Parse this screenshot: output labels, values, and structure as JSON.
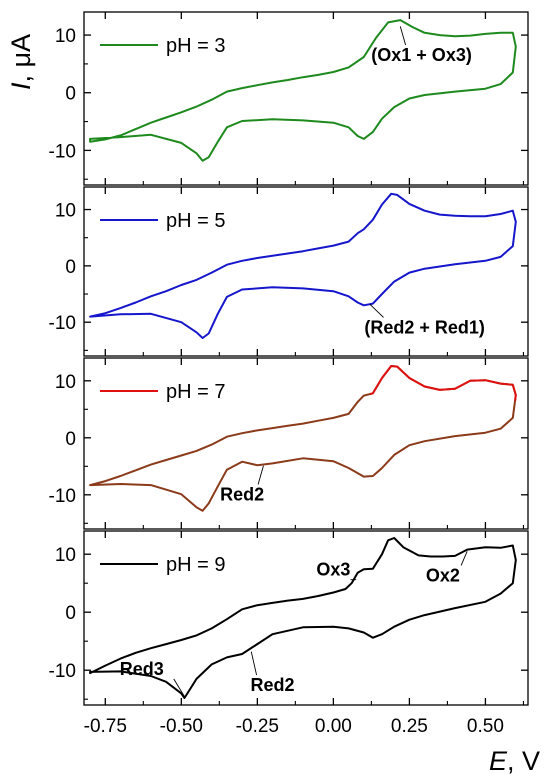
{
  "chart_data": {
    "type": "line",
    "xlabel_var": "E",
    "xlabel_unit": ", V",
    "ylabel_var": "I",
    "ylabel_unit": ", μA",
    "xlim": [
      -0.82,
      0.64
    ],
    "x_ticks": [
      -0.75,
      -0.5,
      -0.25,
      0.0,
      0.25,
      0.5
    ],
    "x_tick_labels": [
      "-0.75",
      "-0.50",
      "-0.25",
      "0.00",
      "0.25",
      "0.50"
    ],
    "panels": [
      {
        "name": "pH = 3",
        "colors": [
          "#1e8a1e"
        ],
        "ylim": [
          -16,
          14
        ],
        "y_ticks": [
          10,
          0,
          -10
        ],
        "y_tick_labels": [
          "10",
          "0",
          "-10"
        ],
        "points": [
          [
            -0.8,
            -8.5
          ],
          [
            -0.75,
            -8.1
          ],
          [
            -0.7,
            -7.4
          ],
          [
            -0.65,
            -6.3
          ],
          [
            -0.6,
            -5.2
          ],
          [
            -0.55,
            -4.3
          ],
          [
            -0.5,
            -3.4
          ],
          [
            -0.45,
            -2.4
          ],
          [
            -0.4,
            -1.2
          ],
          [
            -0.35,
            0.2
          ],
          [
            -0.3,
            0.8
          ],
          [
            -0.25,
            1.3
          ],
          [
            -0.2,
            1.8
          ],
          [
            -0.15,
            2.2
          ],
          [
            -0.1,
            2.7
          ],
          [
            -0.05,
            3.1
          ],
          [
            0,
            3.6
          ],
          [
            0.05,
            4.4
          ],
          [
            0.1,
            6.2
          ],
          [
            0.14,
            9.5
          ],
          [
            0.18,
            12.2
          ],
          [
            0.22,
            12.6
          ],
          [
            0.26,
            11.4
          ],
          [
            0.3,
            10.4
          ],
          [
            0.35,
            10
          ],
          [
            0.4,
            9.8
          ],
          [
            0.45,
            9.9
          ],
          [
            0.5,
            10.2
          ],
          [
            0.55,
            10.4
          ],
          [
            0.59,
            10.4
          ],
          [
            0.6,
            8
          ],
          [
            0.59,
            3.5
          ],
          [
            0.55,
            1.5
          ],
          [
            0.5,
            0.7
          ],
          [
            0.4,
            0.2
          ],
          [
            0.3,
            -0.4
          ],
          [
            0.25,
            -1
          ],
          [
            0.2,
            -2.5
          ],
          [
            0.16,
            -4.5
          ],
          [
            0.13,
            -6.8
          ],
          [
            0.1,
            -8
          ],
          [
            0.08,
            -7.5
          ],
          [
            0.05,
            -6
          ],
          [
            0,
            -5.2
          ],
          [
            -0.1,
            -4.8
          ],
          [
            -0.2,
            -4.6
          ],
          [
            -0.3,
            -4.9
          ],
          [
            -0.35,
            -6
          ],
          [
            -0.38,
            -8.5
          ],
          [
            -0.41,
            -11.2
          ],
          [
            -0.43,
            -11.8
          ],
          [
            -0.45,
            -10.5
          ],
          [
            -0.5,
            -8.7
          ],
          [
            -0.6,
            -7.3
          ],
          [
            -0.7,
            -7.7
          ],
          [
            -0.8,
            -8
          ]
        ]
      },
      {
        "name": "pH = 5",
        "colors": [
          "#1616cc"
        ],
        "ylim": [
          -16,
          14
        ],
        "y_ticks": [
          10,
          0,
          -10
        ],
        "y_tick_labels": [
          "10",
          "0",
          "-10"
        ],
        "points": [
          [
            -0.8,
            -9
          ],
          [
            -0.75,
            -8.4
          ],
          [
            -0.7,
            -7.5
          ],
          [
            -0.65,
            -6.5
          ],
          [
            -0.6,
            -5.4
          ],
          [
            -0.55,
            -4.5
          ],
          [
            -0.5,
            -3.4
          ],
          [
            -0.45,
            -2.5
          ],
          [
            -0.4,
            -1.2
          ],
          [
            -0.35,
            0.2
          ],
          [
            -0.3,
            0.9
          ],
          [
            -0.25,
            1.4
          ],
          [
            -0.2,
            1.8
          ],
          [
            -0.15,
            2.2
          ],
          [
            -0.1,
            2.6
          ],
          [
            -0.05,
            3.1
          ],
          [
            0,
            3.6
          ],
          [
            0.05,
            4.3
          ],
          [
            0.08,
            5.8
          ],
          [
            0.1,
            6.5
          ],
          [
            0.13,
            8.2
          ],
          [
            0.16,
            10.9
          ],
          [
            0.19,
            12.8
          ],
          [
            0.21,
            12.6
          ],
          [
            0.25,
            11
          ],
          [
            0.3,
            9.8
          ],
          [
            0.35,
            9.1
          ],
          [
            0.4,
            8.9
          ],
          [
            0.45,
            8.8
          ],
          [
            0.5,
            8.8
          ],
          [
            0.55,
            9.2
          ],
          [
            0.59,
            9.8
          ],
          [
            0.6,
            7.8
          ],
          [
            0.59,
            3.5
          ],
          [
            0.55,
            1.6
          ],
          [
            0.5,
            0.9
          ],
          [
            0.4,
            0.3
          ],
          [
            0.3,
            -0.5
          ],
          [
            0.25,
            -1.2
          ],
          [
            0.2,
            -2.8
          ],
          [
            0.16,
            -5
          ],
          [
            0.13,
            -6.7
          ],
          [
            0.1,
            -7
          ],
          [
            0.08,
            -6.5
          ],
          [
            0.05,
            -5.4
          ],
          [
            0,
            -4.5
          ],
          [
            -0.1,
            -4
          ],
          [
            -0.2,
            -3.8
          ],
          [
            -0.3,
            -4.2
          ],
          [
            -0.35,
            -5.5
          ],
          [
            -0.38,
            -8.5
          ],
          [
            -0.41,
            -12
          ],
          [
            -0.43,
            -12.8
          ],
          [
            -0.45,
            -11.8
          ],
          [
            -0.5,
            -10
          ],
          [
            -0.6,
            -8.5
          ],
          [
            -0.7,
            -8.6
          ],
          [
            -0.8,
            -9
          ]
        ]
      },
      {
        "name": "pH = 7",
        "colors": [
          "#e01010",
          "#8b3a1a"
        ],
        "ylim": [
          -16,
          14
        ],
        "y_ticks": [
          10,
          0,
          -10
        ],
        "y_tick_labels": [
          "10",
          "0",
          "-10"
        ],
        "points": [
          [
            -0.8,
            -8.3
          ],
          [
            -0.75,
            -7.6
          ],
          [
            -0.7,
            -6.7
          ],
          [
            -0.65,
            -5.7
          ],
          [
            -0.6,
            -4.7
          ],
          [
            -0.55,
            -3.9
          ],
          [
            -0.5,
            -3.1
          ],
          [
            -0.45,
            -2.3
          ],
          [
            -0.4,
            -1.2
          ],
          [
            -0.35,
            0.2
          ],
          [
            -0.3,
            0.8
          ],
          [
            -0.25,
            1.3
          ],
          [
            -0.2,
            1.7
          ],
          [
            -0.15,
            2.1
          ],
          [
            -0.1,
            2.5
          ],
          [
            -0.05,
            3
          ],
          [
            0,
            3.5
          ],
          [
            0.05,
            4.2
          ],
          [
            0.08,
            6.3
          ],
          [
            0.1,
            7.4
          ],
          [
            0.13,
            7.8
          ],
          [
            0.16,
            10.5
          ],
          [
            0.19,
            12.6
          ],
          [
            0.21,
            12.5
          ],
          [
            0.25,
            10.5
          ],
          [
            0.3,
            9
          ],
          [
            0.35,
            8.4
          ],
          [
            0.4,
            8.6
          ],
          [
            0.45,
            10
          ],
          [
            0.5,
            10.1
          ],
          [
            0.55,
            9.5
          ],
          [
            0.59,
            9.3
          ],
          [
            0.6,
            7.5
          ],
          [
            0.59,
            3.5
          ],
          [
            0.55,
            1.6
          ],
          [
            0.5,
            0.9
          ],
          [
            0.4,
            0.3
          ],
          [
            0.3,
            -0.6
          ],
          [
            0.25,
            -1.3
          ],
          [
            0.2,
            -3
          ],
          [
            0.16,
            -5.3
          ],
          [
            0.13,
            -6.7
          ],
          [
            0.1,
            -6.8
          ],
          [
            0.05,
            -5.3
          ],
          [
            0,
            -4.1
          ],
          [
            -0.1,
            -3.6
          ],
          [
            -0.2,
            -4.5
          ],
          [
            -0.25,
            -4.8
          ],
          [
            -0.3,
            -4.2
          ],
          [
            -0.35,
            -5.6
          ],
          [
            -0.38,
            -8.5
          ],
          [
            -0.41,
            -11.5
          ],
          [
            -0.43,
            -12.8
          ],
          [
            -0.45,
            -12.2
          ],
          [
            -0.5,
            -9.9
          ],
          [
            -0.6,
            -8.3
          ],
          [
            -0.7,
            -8.1
          ],
          [
            -0.8,
            -8.3
          ]
        ]
      },
      {
        "name": "pH = 9",
        "colors": [
          "#000000"
        ],
        "ylim": [
          -16,
          14
        ],
        "y_ticks": [
          10,
          0,
          -10
        ],
        "y_tick_labels": [
          "10",
          "0",
          "-10"
        ],
        "points": [
          [
            -0.8,
            -10.5
          ],
          [
            -0.75,
            -9.2
          ],
          [
            -0.7,
            -8
          ],
          [
            -0.65,
            -7
          ],
          [
            -0.6,
            -6.2
          ],
          [
            -0.55,
            -5.5
          ],
          [
            -0.5,
            -4.8
          ],
          [
            -0.45,
            -4
          ],
          [
            -0.4,
            -2.8
          ],
          [
            -0.35,
            -1.2
          ],
          [
            -0.3,
            0.5
          ],
          [
            -0.25,
            1.2
          ],
          [
            -0.2,
            1.6
          ],
          [
            -0.15,
            2
          ],
          [
            -0.1,
            2.3
          ],
          [
            -0.05,
            2.8
          ],
          [
            0,
            3.4
          ],
          [
            0.04,
            4
          ],
          [
            0.06,
            5
          ],
          [
            0.08,
            6.8
          ],
          [
            0.1,
            7.4
          ],
          [
            0.13,
            7.5
          ],
          [
            0.16,
            10
          ],
          [
            0.18,
            12.4
          ],
          [
            0.2,
            12.8
          ],
          [
            0.23,
            11.2
          ],
          [
            0.28,
            9.8
          ],
          [
            0.32,
            9.6
          ],
          [
            0.36,
            9.6
          ],
          [
            0.4,
            9.7
          ],
          [
            0.44,
            10.8
          ],
          [
            0.5,
            11.2
          ],
          [
            0.55,
            11.1
          ],
          [
            0.59,
            11.5
          ],
          [
            0.6,
            9
          ],
          [
            0.59,
            5
          ],
          [
            0.55,
            3.2
          ],
          [
            0.5,
            1.8
          ],
          [
            0.4,
            0.7
          ],
          [
            0.3,
            -0.5
          ],
          [
            0.25,
            -1.3
          ],
          [
            0.2,
            -2.5
          ],
          [
            0.16,
            -3.8
          ],
          [
            0.13,
            -4.4
          ],
          [
            0.1,
            -3.5
          ],
          [
            0.05,
            -2.8
          ],
          [
            0,
            -2.5
          ],
          [
            -0.1,
            -2.6
          ],
          [
            -0.2,
            -3.8
          ],
          [
            -0.25,
            -5.5
          ],
          [
            -0.3,
            -7.2
          ],
          [
            -0.35,
            -7.8
          ],
          [
            -0.4,
            -9
          ],
          [
            -0.45,
            -11.5
          ],
          [
            -0.48,
            -14
          ],
          [
            -0.49,
            -14.8
          ],
          [
            -0.5,
            -14
          ],
          [
            -0.55,
            -12
          ],
          [
            -0.6,
            -11
          ],
          [
            -0.7,
            -10.2
          ],
          [
            -0.8,
            -10.3
          ]
        ]
      }
    ],
    "annotations": [
      {
        "panel": 0,
        "text": "(Ox1 + Ox3)",
        "x": 0.29,
        "y": 5.5,
        "target": [
          0.22,
          11.5
        ]
      },
      {
        "panel": 1,
        "text": "(Red2 + Red1)",
        "x": 0.3,
        "y": -12,
        "target": [
          0.12,
          -6.8
        ]
      },
      {
        "panel": 2,
        "text": "Red2",
        "x": -0.3,
        "y": -11,
        "target": [
          -0.23,
          -4.9
        ]
      },
      {
        "panel": 3,
        "text": "Ox3",
        "x": 0.0,
        "y": 6.3,
        "target": [
          0.075,
          5.6
        ]
      },
      {
        "panel": 3,
        "text": "Ox2",
        "x": 0.36,
        "y": 5.3,
        "target": [
          0.44,
          10.5
        ]
      },
      {
        "panel": 3,
        "text": "Red3",
        "x": -0.63,
        "y": -10.8,
        "target": [
          -0.49,
          -14.5
        ]
      },
      {
        "panel": 3,
        "text": "Red2",
        "x": -0.2,
        "y": -13.6,
        "target": [
          -0.27,
          -6.8
        ]
      }
    ]
  }
}
